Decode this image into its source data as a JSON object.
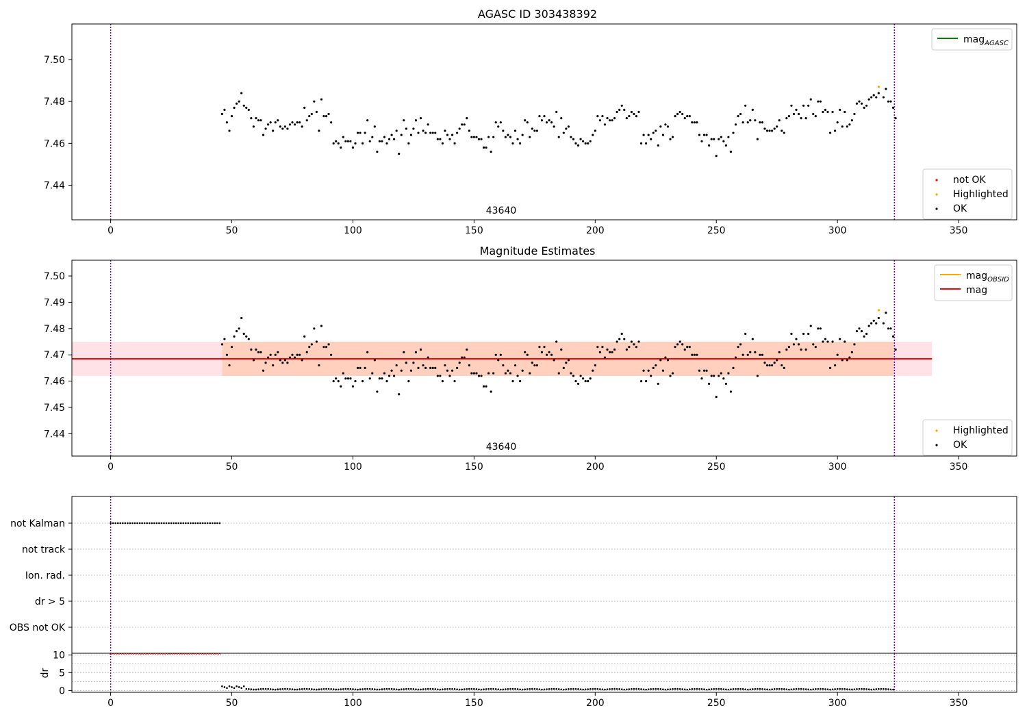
{
  "chart_data": [
    {
      "type": "scatter",
      "title": "AGASC ID 303438392",
      "annotation": "43640",
      "xlim": [
        -16,
        374
      ],
      "ylim": [
        7.4235,
        7.517
      ],
      "xticks": [
        "0",
        "50",
        "100",
        "150",
        "200",
        "250",
        "300",
        "350"
      ],
      "yticks": [
        "7.44",
        "7.46",
        "7.48",
        "7.50"
      ],
      "vlines": [
        0,
        323.5
      ],
      "legend_top": {
        "placement": "top-right",
        "entries": [
          {
            "label": "mag",
            "subscript": "AGASC",
            "color": "#008000"
          }
        ]
      },
      "legend_bottom": {
        "placement": "bottom-right",
        "entries": [
          {
            "label": "not OK",
            "color": "#ff0000"
          },
          {
            "label": "Highlighted",
            "color": "#ffa500"
          },
          {
            "label": "OK",
            "color": "#000000"
          }
        ]
      },
      "highlighted": [
        {
          "x": 317,
          "y": 7.487
        }
      ],
      "series": [
        {
          "name": "OK",
          "color": "#000000",
          "x_start": 46,
          "x_step": 1,
          "y": [
            7.474,
            7.476,
            7.47,
            7.466,
            7.473,
            7.477,
            7.479,
            7.48,
            7.484,
            7.478,
            7.477,
            7.476,
            7.472,
            7.468,
            7.472,
            7.471,
            7.471,
            7.464,
            7.467,
            7.469,
            7.47,
            7.466,
            7.47,
            7.471,
            7.468,
            7.467,
            7.468,
            7.467,
            7.469,
            7.47,
            7.469,
            7.47,
            7.47,
            7.468,
            7.477,
            7.471,
            7.473,
            7.474,
            7.48,
            7.475,
            7.466,
            7.481,
            7.473,
            7.473,
            7.474,
            7.47,
            7.46,
            7.461,
            7.46,
            7.458,
            7.463,
            7.461,
            7.461,
            7.461,
            7.458,
            7.46,
            7.465,
            7.465,
            7.46,
            7.465,
            7.471,
            7.461,
            7.463,
            7.468,
            7.456,
            7.461,
            7.461,
            7.463,
            7.46,
            7.462,
            7.464,
            7.462,
            7.466,
            7.455,
            7.464,
            7.471,
            7.467,
            7.46,
            7.464,
            7.467,
            7.471,
            7.465,
            7.472,
            7.466,
            7.465,
            7.469,
            7.465,
            7.465,
            7.465,
            7.462,
            7.462,
            7.46,
            7.466,
            7.464,
            7.462,
            7.464,
            7.46,
            7.465,
            7.467,
            7.469,
            7.469,
            7.472,
            7.466,
            7.463,
            7.463,
            7.463,
            7.462,
            7.462,
            7.458,
            7.458,
            7.463,
            7.456,
            7.463,
            7.47,
            7.468,
            7.47,
            7.466,
            7.463,
            7.464,
            7.463,
            7.46,
            7.466,
            7.462,
            7.46,
            7.464,
            7.471,
            7.47,
            7.463,
            7.467,
            7.466,
            7.466,
            7.473,
            7.471,
            7.473,
            7.47,
            7.471,
            7.47,
            7.468,
            7.475,
            7.463,
            7.472,
            7.465,
            7.467,
            7.468,
            7.463,
            7.462,
            7.46,
            7.459,
            7.462,
            7.461,
            7.46,
            7.46,
            7.461,
            7.464,
            7.466,
            7.473,
            7.471,
            7.473,
            7.469,
            7.472,
            7.471,
            7.471,
            7.472,
            7.475,
            7.476,
            7.478,
            7.476,
            7.472,
            7.473,
            7.475,
            7.474,
            7.473,
            7.475,
            7.46,
            7.464,
            7.46,
            7.464,
            7.462,
            7.465,
            7.466,
            7.459,
            7.468,
            7.464,
            7.469,
            7.468,
            7.462,
            7.463,
            7.473,
            7.474,
            7.475,
            7.474,
            7.472,
            7.473,
            7.473,
            7.47,
            7.47,
            7.47,
            7.464,
            7.461,
            7.464,
            7.464,
            7.459,
            7.462,
            7.462,
            7.454,
            7.462,
            7.463,
            7.461,
            7.459,
            7.463,
            7.456,
            7.465,
            7.469,
            7.473,
            7.474,
            7.47,
            7.478,
            7.47,
            7.471,
            7.476,
            7.471,
            7.462,
            7.47,
            7.47,
            7.467,
            7.466,
            7.466,
            7.466,
            7.467,
            7.468,
            7.471,
            7.466,
            7.465,
            7.472,
            7.473,
            7.478,
            7.474,
            7.476,
            7.474,
            7.472,
            7.478,
            7.472,
            7.478,
            7.481,
            7.474,
            7.473,
            7.48,
            7.48,
            7.475,
            7.476,
            7.475,
            7.465,
            7.475,
            7.466,
            7.47,
            7.476,
            7.468,
            7.475,
            7.468,
            7.469,
            7.471,
            7.474,
            7.479,
            7.48,
            7.479,
            7.477,
            7.478,
            7.481,
            7.482,
            7.483,
            7.482,
            7.484,
            null,
            7.482,
            7.486,
            7.48,
            7.48,
            7.477,
            7.472
          ]
        }
      ]
    },
    {
      "type": "scatter",
      "title": "Magnitude Estimates",
      "annotation": "43640",
      "xlim": [
        -16,
        374
      ],
      "ylim": [
        7.4315,
        7.506
      ],
      "xticks": [
        "0",
        "50",
        "100",
        "150",
        "200",
        "250",
        "300",
        "350"
      ],
      "yticks": [
        "7.44",
        "7.45",
        "7.46",
        "7.47",
        "7.48",
        "7.49",
        "7.50"
      ],
      "vlines": [
        0,
        323.5
      ],
      "mag": {
        "value": 7.4685,
        "band_low": 7.462,
        "band_high": 7.475,
        "x_end": 339
      },
      "legend_top": {
        "placement": "top-right",
        "entries": [
          {
            "label": "mag",
            "subscript": "OBSID",
            "color": "#ffa500"
          },
          {
            "label": "mag",
            "color": "#ff0000"
          }
        ]
      },
      "legend_bottom": {
        "placement": "bottom-right",
        "entries": [
          {
            "label": "Highlighted",
            "color": "#ffa500"
          },
          {
            "label": "OK",
            "color": "#000000"
          }
        ]
      },
      "highlighted": [
        {
          "x": 317,
          "y": 7.487
        }
      ],
      "series_ref": 0
    },
    {
      "type": "scatter",
      "title": "",
      "xlim": [
        -16,
        374
      ],
      "xticks": [
        "0",
        "50",
        "100",
        "150",
        "200",
        "250",
        "300",
        "350"
      ],
      "flag_labels": [
        "not Kalman",
        "not track",
        "Ion. rad.",
        "dr > 5",
        "OBS not OK"
      ],
      "flags": {
        "not Kalman": [
          0,
          45
        ]
      },
      "vlines": [
        0,
        323.5
      ]
    },
    {
      "type": "scatter",
      "title": "",
      "ylabel": "dr",
      "xlim": [
        -16,
        374
      ],
      "ylim": [
        -0.5,
        10.5
      ],
      "xticks": [
        "0",
        "50",
        "100",
        "150",
        "200",
        "250",
        "300",
        "350"
      ],
      "yticks": [
        "0",
        "5",
        "10"
      ],
      "vlines": [
        0,
        323.5
      ],
      "clipped_range": [
        0,
        45
      ],
      "clipped_value": 10,
      "tail_start": 46,
      "tail_end": 323,
      "tail_values": [
        0.3,
        1.2,
        0.6,
        0.8,
        0.4,
        0.2
      ]
    }
  ]
}
